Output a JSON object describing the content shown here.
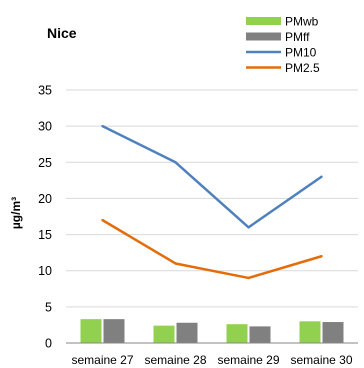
{
  "chart_data": {
    "type": "bar",
    "title": "Nice",
    "xlabel": "",
    "ylabel": "µg/m³",
    "categories": [
      "semaine 27",
      "semaine 28",
      "semaine 29",
      "semaine 30"
    ],
    "ylim": [
      0,
      35
    ],
    "yticks": [
      0,
      5,
      10,
      15,
      20,
      25,
      30,
      35
    ],
    "grid": true,
    "legend_position": "top-right",
    "bar_series": [
      {
        "name": "PMwb",
        "color": "#92d050",
        "values": [
          3.3,
          2.4,
          2.6,
          3.0
        ]
      },
      {
        "name": "PMff",
        "color": "#808080",
        "values": [
          3.3,
          2.8,
          2.3,
          2.9
        ]
      }
    ],
    "line_series": [
      {
        "name": "PM10",
        "color": "#4f81bd",
        "values": [
          30,
          25,
          16,
          23
        ]
      },
      {
        "name": "PM2.5",
        "color": "#e46c0a",
        "values": [
          17,
          11,
          9,
          12
        ]
      }
    ]
  }
}
